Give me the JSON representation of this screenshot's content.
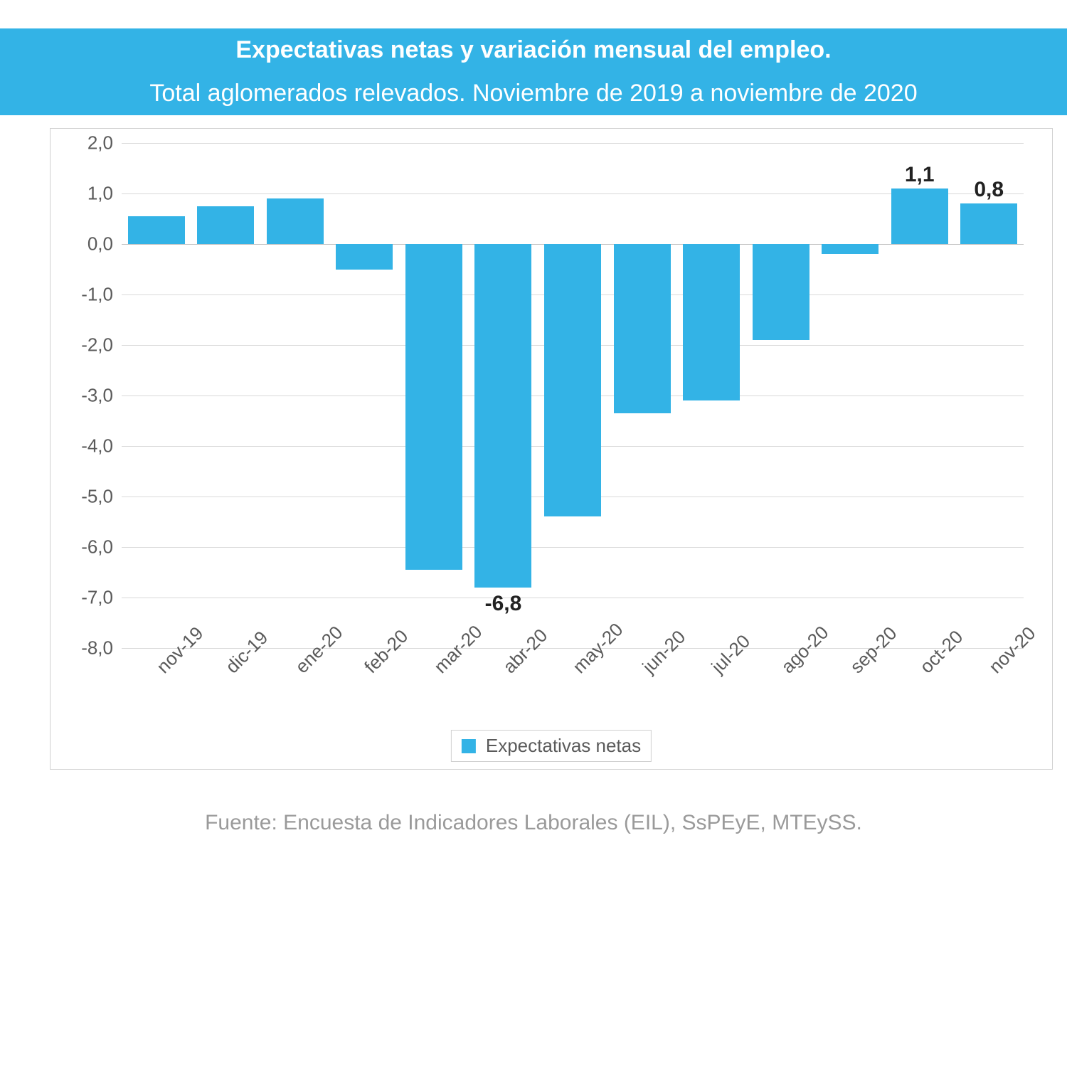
{
  "header": {
    "title": "Expectativas netas y variación mensual del empleo.",
    "subtitle": "Total aglomerados relevados. Noviembre de 2019 a noviembre de 2020",
    "band_color": "#33b3e6",
    "text_color": "#ffffff"
  },
  "chart": {
    "type": "bar",
    "categories": [
      "nov-19",
      "dic-19",
      "ene-20",
      "feb-20",
      "mar-20",
      "abr-20",
      "may-20",
      "jun-20",
      "jul-20",
      "ago-20",
      "sep-20",
      "oct-20",
      "nov-20"
    ],
    "values": [
      0.55,
      0.75,
      0.9,
      -0.5,
      -6.45,
      -6.8,
      -5.4,
      -3.35,
      -3.1,
      -1.9,
      -0.2,
      1.1,
      0.8
    ],
    "value_labels": {
      "5": "-6,8",
      "11": "1,1",
      "12": "0,8"
    },
    "bar_color": "#33b3e6",
    "background_color": "#ffffff",
    "grid_color": "#d9d9d9",
    "axis_color": "#bfbfbf",
    "tick_color": "#5a5a5a",
    "frame_border_color": "#d0d0d0",
    "ylim": [
      -8.0,
      2.0
    ],
    "ytick_step": 1.0,
    "ytick_format": "decimal-comma-1",
    "bar_width_ratio": 0.82,
    "legend_label": "Expectativas netas",
    "title_fontsize": 34,
    "label_fontsize": 26,
    "data_label_fontsize": 30
  },
  "source": {
    "text": "Fuente: Encuesta de Indicadores Laborales (EIL), SsPEyE, MTEySS."
  }
}
